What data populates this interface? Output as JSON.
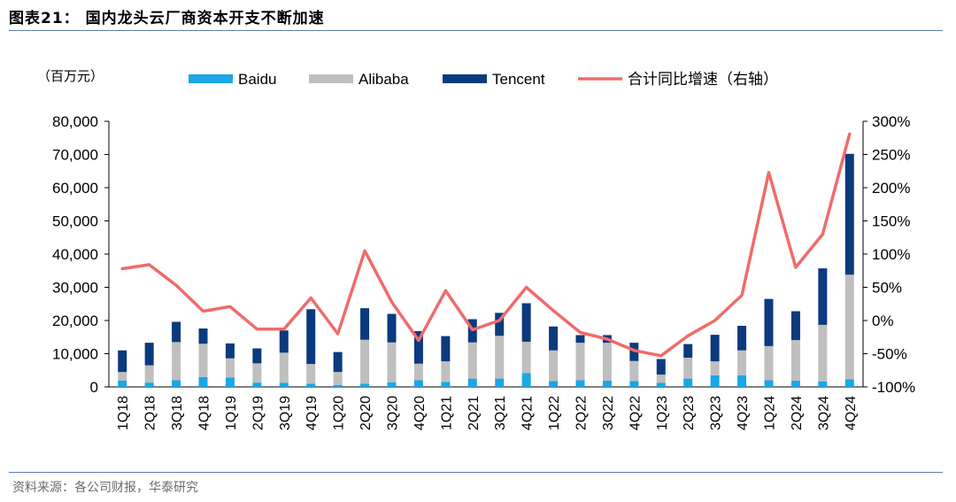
{
  "header": {
    "title": "图表21： 国内龙头云厂商资本开支不断加速"
  },
  "footer": {
    "source": "资料来源：各公司财报，华泰研究"
  },
  "colors": {
    "baidu": "#1aa6e8",
    "alibaba": "#bfbfbf",
    "tencent": "#0b3a7e",
    "growth": "#f06b6b",
    "rule": "#5b7fa8"
  },
  "chart_data": {
    "type": "bar",
    "stacked": true,
    "unit_label": "（百万元）",
    "categories": [
      "1Q18",
      "2Q18",
      "3Q18",
      "4Q18",
      "1Q19",
      "2Q19",
      "3Q19",
      "4Q19",
      "1Q20",
      "2Q20",
      "3Q20",
      "4Q20",
      "1Q21",
      "2Q21",
      "3Q21",
      "4Q21",
      "1Q22",
      "2Q22",
      "3Q22",
      "4Q22",
      "1Q23",
      "2Q23",
      "3Q23",
      "4Q23",
      "1Q24",
      "2Q24",
      "3Q24",
      "4Q24"
    ],
    "series": [
      {
        "name": "Baidu",
        "type": "bar",
        "axis": "left",
        "values": [
          1900,
          1300,
          2000,
          3000,
          2800,
          1300,
          1200,
          1000,
          600,
          1000,
          1400,
          2000,
          1500,
          2500,
          2500,
          4200,
          1800,
          2000,
          1900,
          1800,
          1200,
          2500,
          3500,
          3500,
          2000,
          1900,
          1600,
          2300
        ]
      },
      {
        "name": "Alibaba",
        "type": "bar",
        "axis": "left",
        "values": [
          2600,
          5200,
          11500,
          10000,
          5800,
          5800,
          9100,
          5900,
          3900,
          13200,
          12000,
          5000,
          6200,
          10900,
          12900,
          9400,
          9200,
          11300,
          11400,
          6000,
          2500,
          6300,
          4200,
          7500,
          10300,
          12200,
          17100,
          31500
        ]
      },
      {
        "name": "Tencent",
        "type": "bar",
        "axis": "left",
        "values": [
          6500,
          6800,
          6100,
          4600,
          4500,
          4500,
          6700,
          16500,
          6000,
          9500,
          8600,
          9800,
          7600,
          7000,
          6900,
          11600,
          7200,
          2300,
          2300,
          5500,
          4700,
          4100,
          8000,
          7400,
          14200,
          8700,
          17000,
          36400
        ]
      },
      {
        "name": "合计同比增速（右轴）",
        "type": "line",
        "axis": "right",
        "values": [
          78,
          84,
          53,
          14,
          21,
          -13,
          -13,
          34,
          -20,
          105,
          28,
          -30,
          45,
          -14,
          0,
          50,
          15,
          -18,
          -28,
          -45,
          -53,
          -23,
          0,
          38,
          223,
          80,
          130,
          281
        ]
      }
    ],
    "y_left": {
      "min": 0,
      "max": 80000,
      "ticks": [
        "0",
        "10,000",
        "20,000",
        "30,000",
        "40,000",
        "50,000",
        "60,000",
        "70,000",
        "80,000"
      ]
    },
    "y_right": {
      "min": -100,
      "max": 300,
      "ticks": [
        "-100%",
        "-50%",
        "0%",
        "50%",
        "100%",
        "150%",
        "200%",
        "250%",
        "300%"
      ]
    },
    "legend_position": "top"
  }
}
